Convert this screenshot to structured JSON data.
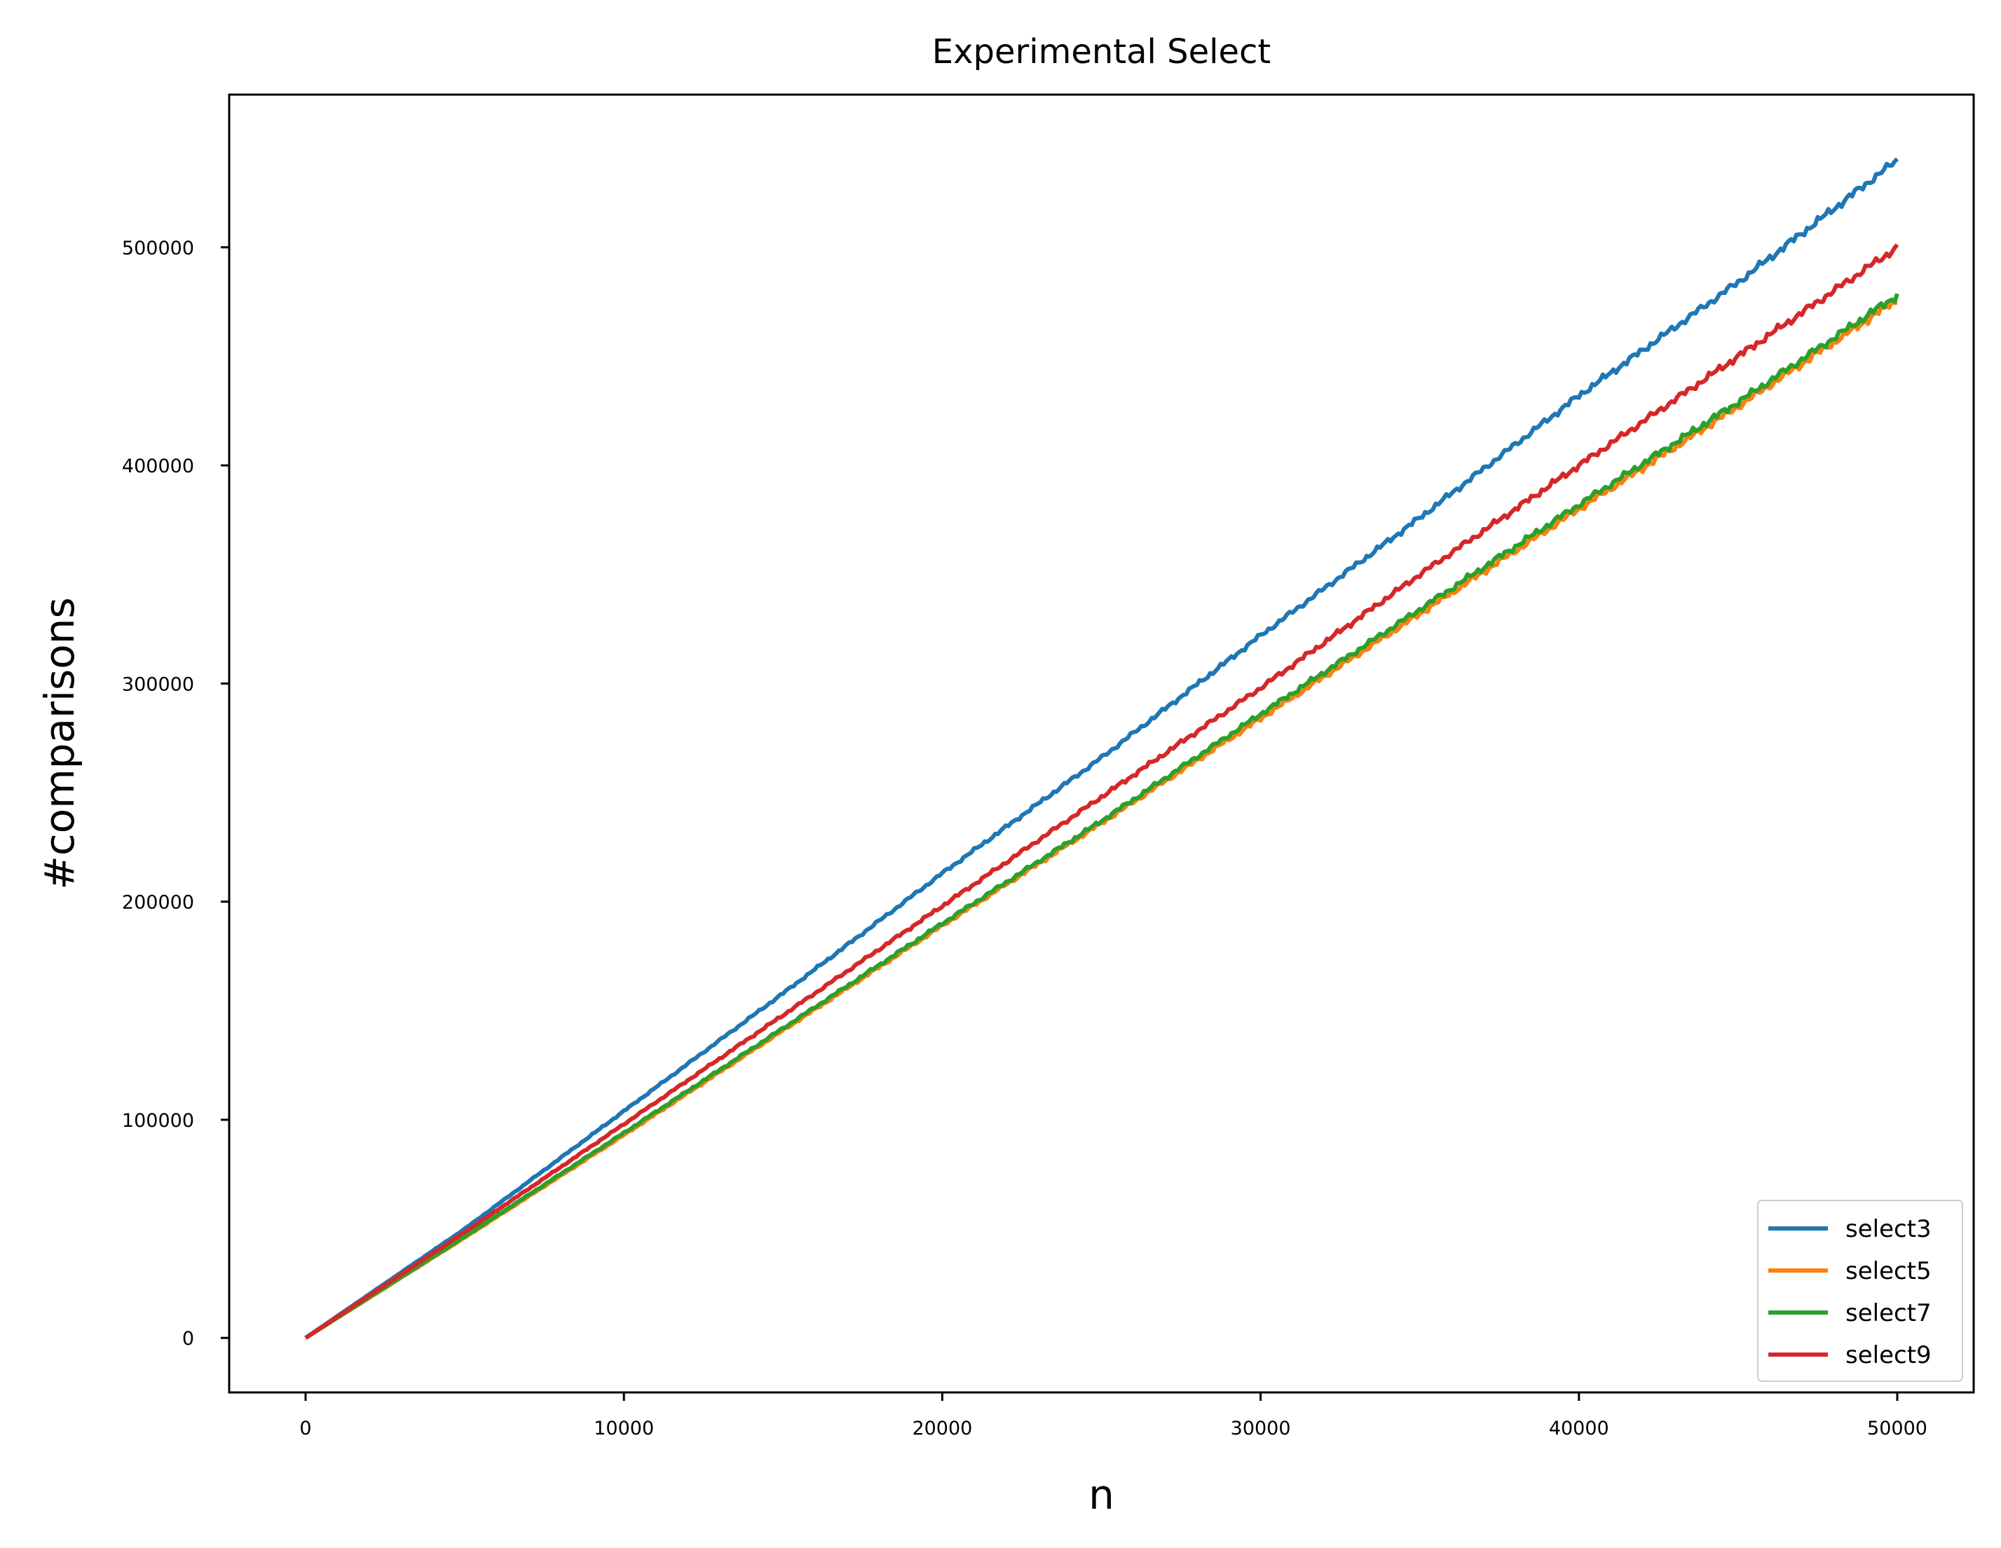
{
  "chart_data": {
    "type": "line",
    "title": "Experimental Select",
    "xlabel": "n",
    "ylabel": "#comparisons",
    "xlim": [
      -2400,
      52400
    ],
    "ylim": [
      -25000,
      570000
    ],
    "xticks": [
      0,
      10000,
      20000,
      30000,
      40000,
      50000
    ],
    "yticks": [
      0,
      100000,
      200000,
      300000,
      400000,
      500000
    ],
    "grid": false,
    "legend_position": "lower-right",
    "x": [
      0,
      5000,
      10000,
      15000,
      20000,
      25000,
      30000,
      35000,
      40000,
      45000,
      50000
    ],
    "series": [
      {
        "name": "select3",
        "color": "#1f77b4",
        "values": [
          0,
          50000,
          104000,
          158000,
          213000,
          266000,
          322000,
          376000,
          432000,
          484000,
          540000
        ]
      },
      {
        "name": "select5",
        "color": "#ff7f0e",
        "values": [
          0,
          46000,
          93000,
          141000,
          189000,
          236000,
          284000,
          332000,
          380000,
          427000,
          476000
        ]
      },
      {
        "name": "select7",
        "color": "#2ca02c",
        "values": [
          0,
          46500,
          94000,
          142000,
          190000,
          237000,
          286000,
          334000,
          382000,
          429000,
          478000
        ]
      },
      {
        "name": "select9",
        "color": "#d62728",
        "values": [
          0,
          48500,
          98000,
          148000,
          198000,
          248000,
          298000,
          350000,
          400000,
          450000,
          500000
        ]
      }
    ]
  }
}
